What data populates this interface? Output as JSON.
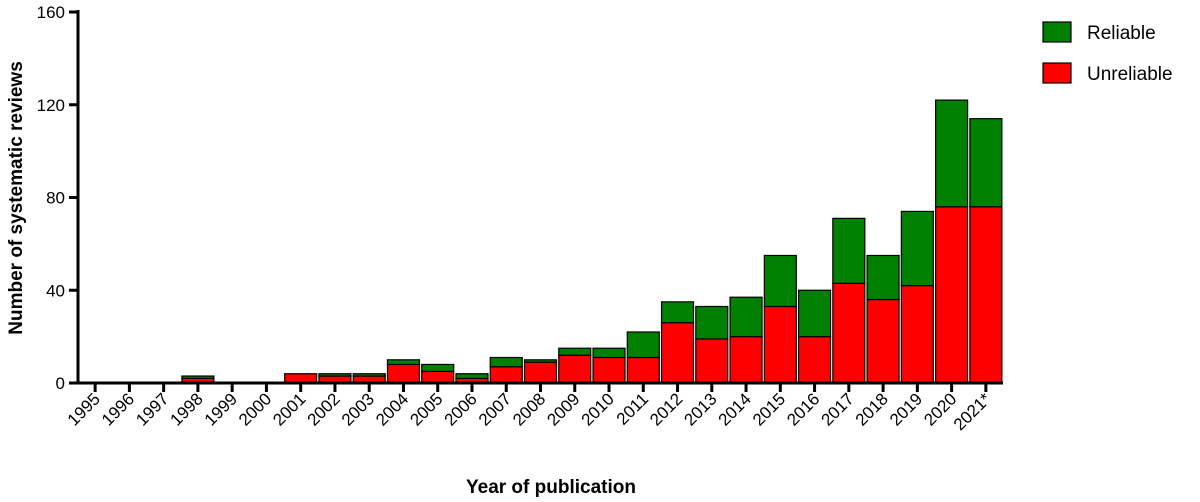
{
  "chart_data": {
    "type": "bar",
    "stacked": true,
    "xlabel": "Year of publication",
    "ylabel": "Number of systematic reviews",
    "ylim": [
      0,
      160
    ],
    "yticks": [
      0,
      40,
      80,
      120,
      160
    ],
    "categories": [
      "1995",
      "1996",
      "1997",
      "1998",
      "1999",
      "2000",
      "2001",
      "2002",
      "2003",
      "2004",
      "2005",
      "2006",
      "2007",
      "2008",
      "2009",
      "2010",
      "2011",
      "2012",
      "2013",
      "2014",
      "2015",
      "2016",
      "2017",
      "2018",
      "2019",
      "2020",
      "2021*"
    ],
    "series": [
      {
        "name": "Unreliable",
        "color": "#ff0000",
        "values": [
          0,
          0,
          0,
          2,
          0,
          0,
          4,
          3,
          3,
          8,
          5,
          2,
          7,
          9,
          12,
          11,
          11,
          26,
          19,
          20,
          33,
          20,
          43,
          36,
          42,
          76,
          76
        ]
      },
      {
        "name": "Reliable",
        "color": "#008000",
        "values": [
          0,
          0,
          0,
          1,
          0,
          0,
          0,
          1,
          1,
          2,
          3,
          2,
          4,
          1,
          3,
          4,
          11,
          9,
          14,
          17,
          22,
          20,
          28,
          19,
          32,
          46,
          38
        ]
      }
    ],
    "legend_position": "top-right",
    "grid": false
  }
}
